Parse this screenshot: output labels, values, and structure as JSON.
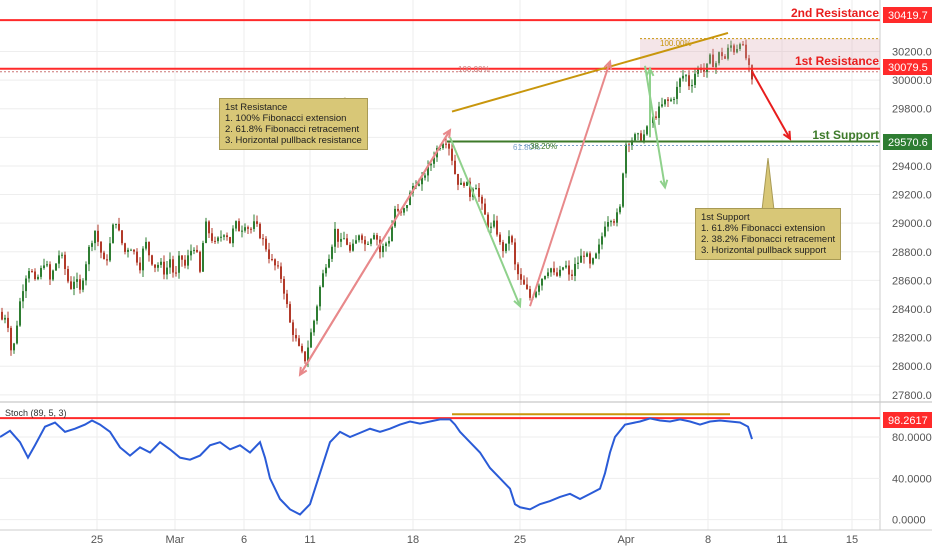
{
  "chart_data": [
    {
      "type": "candlestick",
      "ylim": [
        27750,
        30560
      ],
      "yticks": [
        27800,
        28000,
        28200,
        28400,
        28600,
        28800,
        29000,
        29200,
        29400,
        29600,
        29800,
        30000,
        30200
      ],
      "xticks": [
        "25",
        "Mar",
        "6",
        "11",
        "18",
        "25",
        "Apr",
        "8",
        "11",
        "15"
      ],
      "close_path": [
        [
          0,
          28380
        ],
        [
          3,
          28300
        ],
        [
          6,
          28380
        ],
        [
          9,
          28250
        ],
        [
          12,
          28050
        ],
        [
          15,
          28200
        ],
        [
          20,
          28450
        ],
        [
          25,
          28620
        ],
        [
          30,
          28700
        ],
        [
          35,
          28580
        ],
        [
          40,
          28650
        ],
        [
          45,
          28750
        ],
        [
          50,
          28600
        ],
        [
          55,
          28700
        ],
        [
          60,
          28800
        ],
        [
          65,
          28680
        ],
        [
          70,
          28540
        ],
        [
          75,
          28620
        ],
        [
          80,
          28520
        ],
        [
          85,
          28700
        ],
        [
          90,
          28850
        ],
        [
          95,
          28950
        ],
        [
          100,
          28820
        ],
        [
          105,
          28700
        ],
        [
          110,
          28850
        ],
        [
          115,
          29050
        ],
        [
          120,
          28900
        ],
        [
          125,
          28800
        ],
        [
          130,
          28850
        ],
        [
          135,
          28780
        ],
        [
          140,
          28700
        ],
        [
          145,
          28880
        ],
        [
          150,
          28760
        ],
        [
          155,
          28700
        ],
        [
          160,
          28720
        ],
        [
          165,
          28650
        ],
        [
          170,
          28750
        ],
        [
          175,
          28600
        ],
        [
          180,
          28780
        ],
        [
          185,
          28700
        ],
        [
          190,
          28800
        ],
        [
          195,
          28850
        ],
        [
          200,
          28650
        ],
        [
          205,
          29000
        ],
        [
          210,
          28920
        ],
        [
          215,
          28850
        ],
        [
          220,
          28900
        ],
        [
          225,
          28950
        ],
        [
          230,
          28870
        ],
        [
          235,
          29000
        ],
        [
          240,
          28950
        ],
        [
          245,
          29000
        ],
        [
          250,
          28950
        ],
        [
          255,
          29000
        ],
        [
          260,
          28920
        ],
        [
          265,
          28850
        ],
        [
          270,
          28750
        ],
        [
          275,
          28700
        ],
        [
          280,
          28650
        ],
        [
          285,
          28500
        ],
        [
          290,
          28300
        ],
        [
          295,
          28200
        ],
        [
          300,
          28100
        ],
        [
          305,
          28050
        ],
        [
          310,
          28200
        ],
        [
          315,
          28350
        ],
        [
          320,
          28550
        ],
        [
          325,
          28700
        ],
        [
          330,
          28800
        ],
        [
          335,
          28950
        ],
        [
          340,
          28850
        ],
        [
          345,
          28900
        ],
        [
          350,
          28800
        ],
        [
          355,
          28850
        ],
        [
          360,
          28950
        ],
        [
          365,
          28850
        ],
        [
          370,
          28900
        ],
        [
          375,
          28950
        ],
        [
          380,
          28800
        ],
        [
          385,
          28850
        ],
        [
          390,
          28900
        ],
        [
          395,
          29100
        ],
        [
          400,
          29050
        ],
        [
          405,
          29100
        ],
        [
          410,
          29200
        ],
        [
          415,
          29300
        ],
        [
          420,
          29250
        ],
        [
          425,
          29350
        ],
        [
          430,
          29400
        ],
        [
          435,
          29500
        ],
        [
          440,
          29550
        ],
        [
          445,
          29600
        ],
        [
          450,
          29520
        ],
        [
          455,
          29350
        ],
        [
          460,
          29250
        ],
        [
          465,
          29300
        ],
        [
          470,
          29200
        ],
        [
          475,
          29300
        ],
        [
          480,
          29150
        ],
        [
          485,
          29050
        ],
        [
          490,
          28950
        ],
        [
          495,
          29000
        ],
        [
          500,
          28850
        ],
        [
          505,
          28800
        ],
        [
          510,
          28950
        ],
        [
          515,
          28700
        ],
        [
          520,
          28600
        ],
        [
          525,
          28550
        ],
        [
          530,
          28480
        ],
        [
          535,
          28520
        ],
        [
          540,
          28600
        ],
        [
          545,
          28650
        ],
        [
          550,
          28700
        ],
        [
          555,
          28620
        ],
        [
          560,
          28650
        ],
        [
          565,
          28720
        ],
        [
          570,
          28600
        ],
        [
          575,
          28700
        ],
        [
          580,
          28750
        ],
        [
          585,
          28800
        ],
        [
          590,
          28700
        ],
        [
          595,
          28750
        ],
        [
          600,
          28850
        ],
        [
          605,
          29000
        ],
        [
          610,
          29050
        ],
        [
          615,
          29020
        ],
        [
          620,
          29100
        ],
        [
          625,
          29550
        ],
        [
          630,
          29580
        ],
        [
          635,
          29600
        ],
        [
          640,
          29600
        ],
        [
          645,
          29620
        ],
        [
          650,
          29700
        ],
        [
          655,
          29750
        ],
        [
          660,
          29800
        ],
        [
          665,
          29850
        ],
        [
          670,
          29850
        ],
        [
          675,
          29900
        ],
        [
          680,
          30000
        ],
        [
          685,
          30050
        ],
        [
          690,
          29950
        ],
        [
          695,
          30050
        ],
        [
          700,
          30100
        ],
        [
          705,
          30050
        ],
        [
          710,
          30150
        ],
        [
          715,
          30100
        ],
        [
          720,
          30200
        ],
        [
          725,
          30150
        ],
        [
          730,
          30250
        ],
        [
          735,
          30200
        ],
        [
          740,
          30280
        ],
        [
          745,
          30180
        ],
        [
          750,
          30050
        ],
        [
          752,
          29980
        ]
      ]
    },
    {
      "type": "line",
      "title": "Stoch (89, 5, 3)",
      "ylim": [
        -10,
        110
      ],
      "yticks": [
        0,
        40,
        80
      ],
      "ytick_labels": [
        "0.0000",
        "40.0000",
        "80.0000"
      ],
      "line_color": "#2a5bd7",
      "values": [
        [
          0,
          80
        ],
        [
          10,
          86
        ],
        [
          20,
          75
        ],
        [
          28,
          60
        ],
        [
          35,
          72
        ],
        [
          45,
          90
        ],
        [
          55,
          94
        ],
        [
          65,
          85
        ],
        [
          75,
          88
        ],
        [
          85,
          92
        ],
        [
          92,
          96
        ],
        [
          100,
          92
        ],
        [
          110,
          85
        ],
        [
          120,
          70
        ],
        [
          130,
          62
        ],
        [
          140,
          70
        ],
        [
          150,
          65
        ],
        [
          160,
          75
        ],
        [
          170,
          68
        ],
        [
          180,
          60
        ],
        [
          190,
          58
        ],
        [
          200,
          62
        ],
        [
          210,
          72
        ],
        [
          220,
          75
        ],
        [
          230,
          68
        ],
        [
          240,
          72
        ],
        [
          250,
          65
        ],
        [
          260,
          75
        ],
        [
          265,
          60
        ],
        [
          270,
          40
        ],
        [
          280,
          20
        ],
        [
          290,
          10
        ],
        [
          300,
          5
        ],
        [
          310,
          15
        ],
        [
          320,
          45
        ],
        [
          330,
          75
        ],
        [
          340,
          85
        ],
        [
          350,
          80
        ],
        [
          360,
          84
        ],
        [
          370,
          88
        ],
        [
          380,
          85
        ],
        [
          390,
          88
        ],
        [
          400,
          92
        ],
        [
          410,
          95
        ],
        [
          420,
          93
        ],
        [
          430,
          95
        ],
        [
          440,
          97
        ],
        [
          450,
          97
        ],
        [
          455,
          92
        ],
        [
          460,
          85
        ],
        [
          470,
          75
        ],
        [
          480,
          65
        ],
        [
          490,
          50
        ],
        [
          500,
          40
        ],
        [
          510,
          30
        ],
        [
          515,
          15
        ],
        [
          520,
          12
        ],
        [
          530,
          10
        ],
        [
          540,
          15
        ],
        [
          550,
          18
        ],
        [
          560,
          22
        ],
        [
          570,
          25
        ],
        [
          580,
          20
        ],
        [
          590,
          25
        ],
        [
          600,
          30
        ],
        [
          605,
          45
        ],
        [
          610,
          65
        ],
        [
          615,
          80
        ],
        [
          625,
          92
        ],
        [
          640,
          95
        ],
        [
          650,
          98
        ],
        [
          660,
          96
        ],
        [
          670,
          95
        ],
        [
          680,
          97
        ],
        [
          690,
          95
        ],
        [
          700,
          92
        ],
        [
          710,
          95
        ],
        [
          720,
          96
        ],
        [
          730,
          95
        ],
        [
          740,
          94
        ],
        [
          748,
          90
        ],
        [
          752,
          78
        ]
      ]
    }
  ],
  "levels": {
    "second_resistance": {
      "label": "2nd Resistance",
      "value": "30419.7",
      "y": 30419.7,
      "color": "#ff2a2a"
    },
    "first_resistance": {
      "label": "1st Resistance",
      "value": "30079.5",
      "y": 30079.5,
      "color": "#ff2a2a"
    },
    "first_support": {
      "label": "1st Support",
      "value": "29570.6",
      "y": 29570.6,
      "color": "#3d7a2a"
    },
    "stoch_level": {
      "value": "98.2617",
      "y": 98.2617,
      "color": "#ff2a2a"
    }
  },
  "fib_labels": {
    "fib_100_top": "100.00%",
    "fib_100_mid": "100.00%",
    "fib_618": "61.80%",
    "fib_382": "38.20%"
  },
  "notes": {
    "resistance_note": "1st Resistance\n1. 100% Fibonacci extension\n2. 61.8% Fibonacci retracement\n3. Horizontal pullback resistance",
    "support_note": "1st Support\n1. 61.8% Fibonacci extension\n2. 38.2% Fibonacci retracement\n3. Horizontal pullback support"
  },
  "colors": {
    "up_candle": "#2e7d32",
    "down_candle": "#b23a2a",
    "grid": "#eeeeee",
    "trend_line": "#c8960c",
    "arrow_red": "#e8898b",
    "arrow_green": "#8fd18c",
    "projection_arrow": "#e81d1d"
  }
}
